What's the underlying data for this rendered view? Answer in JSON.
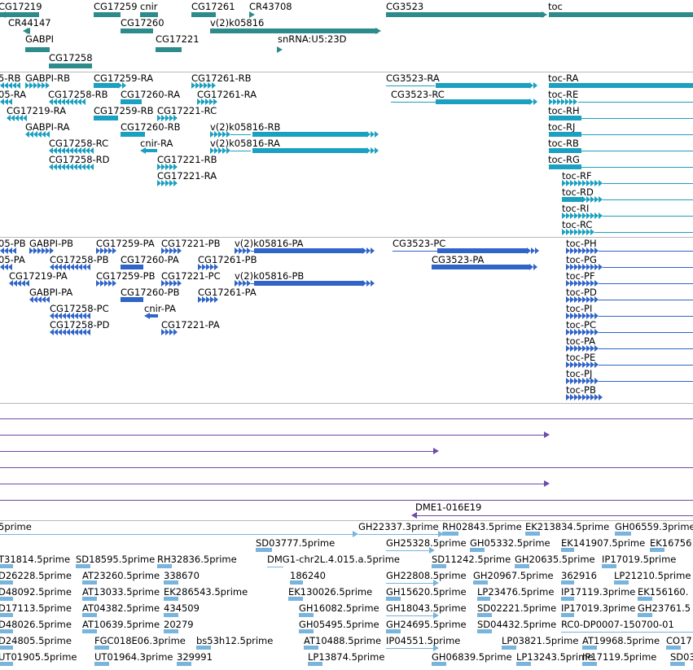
{
  "colors": {
    "gene": "#2e8b8b",
    "transcript": "#1aa0c0",
    "cds": "#2f64c8",
    "clone": "#6a4ca8",
    "est": "#78b4dc",
    "divider": "#b8b8b8"
  },
  "genes": {
    "labels": [
      "CG17219",
      "CG17259",
      "cnir",
      "CG17261",
      "CR43708",
      "CG3523",
      "toc",
      "CR44147",
      "CG17260",
      "v(2)k05816",
      "GABPI",
      "CG17221",
      "snRNA:U5:23D",
      "CG17258"
    ]
  },
  "transcripts": {
    "labels": [
      "5-RB",
      "GABPI-RB",
      "CG17259-RA",
      "CG17261-RB",
      "CG3523-RA",
      "toc-RA",
      "05-RA",
      "CG17258-RB",
      "CG17260-RA",
      "CG17261-RA",
      "CG3523-RC",
      "toc-RE",
      "CG17219-RA",
      "CG17259-RB",
      "CG17221-RC",
      "toc-RH",
      "GABPI-RA",
      "CG17260-RB",
      "v(2)k05816-RB",
      "toc-RJ",
      "CG17258-RC",
      "cnir-RA",
      "v(2)k05816-RA",
      "toc-RB",
      "CG17258-RD",
      "CG17221-RB",
      "toc-RG",
      "CG17221-RA",
      "toc-RF",
      "toc-RD",
      "toc-RI",
      "toc-RC"
    ]
  },
  "proteins": {
    "labels": [
      "05-PB",
      "GABPI-PB",
      "CG17259-PA",
      "CG17221-PB",
      "v(2)k05816-PA",
      "CG3523-PC",
      "toc-PH",
      "05-PA",
      "CG17258-PB",
      "CG17260-PA",
      "CG17261-PB",
      "CG3523-PA",
      "toc-PG",
      "CG17219-PA",
      "CG17259-PB",
      "CG17221-PC",
      "v(2)k05816-PB",
      "toc-PF",
      "GABPI-PA",
      "CG17260-PB",
      "CG17261-PA",
      "toc-PD",
      "CG17258-PC",
      "cnir-PA",
      "toc-PI",
      "CG17258-PD",
      "CG17221-PA",
      "toc-PC",
      "toc-PA",
      "toc-PE",
      "toc-PJ",
      "toc-PB"
    ]
  },
  "clones": {
    "labels": [
      "DME1-016E19"
    ]
  },
  "ests": {
    "labels": [
      "5prime",
      "GH22337.3prime",
      "RH02843.5prime",
      "EK213834.5prime",
      "GH06559.3prime",
      "SD03777.5prime",
      "GH25328.5prime",
      "GH05332.5prime",
      "EK141907.5prime",
      "EK16756",
      "T31814.5prime",
      "SD18595.5prime",
      "RH32836.5prime",
      "DMG1-chr2L.4.015.a.5prime",
      "SD11242.5prime",
      "GH20635.5prime",
      "IP17019.5prime",
      "D26228.5prime",
      "AT23260.5prime",
      "338670",
      "186240",
      "GH22808.5prime",
      "GH20967.5prime",
      "362916",
      "LP21210.5prime",
      "D48092.5prime",
      "AT13033.5prime",
      "EK286543.5prime",
      "EK130026.5prime",
      "GH15620.5prime",
      "LP23476.5prime",
      "IP17119.3prime",
      "EK156160.",
      "D17113.5prime",
      "AT04382.5prime",
      "434509",
      "GH16082.5prime",
      "GH18043.5prime",
      "SD02221.5prime",
      "IP17019.3prime",
      "GH23761.5",
      "D48026.5prime",
      "AT10639.5prime",
      "20279",
      "GH05495.5prime",
      "GH24695.5prime",
      "SD04432.5prime",
      "RC0-DP0007-150700-01",
      "D24805.5prime",
      "FGC018E06.3prime",
      "bs53h12.5prime",
      "AT10488.5prime",
      "IP04551.5prime",
      "LP03821.5prime",
      "AT19968.5prime",
      "CO17",
      "UT01905.5prime",
      "UT01964.3prime",
      "329991",
      "LP13874.5prime",
      "GH06839.5prime",
      "LP13243.5prime",
      "IP17119.5prime",
      "SD03"
    ]
  }
}
